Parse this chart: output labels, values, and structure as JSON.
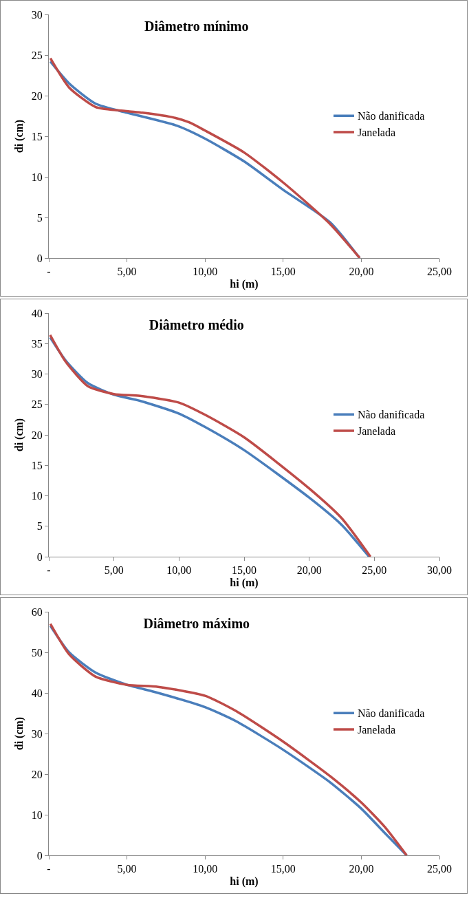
{
  "chart_data": [
    {
      "type": "line",
      "title": "Diâmetro mínimo",
      "xlabel": "hi (m)",
      "ylabel": "di (cm)",
      "xlim": [
        0,
        25
      ],
      "xticks": [
        {
          "value": 0,
          "label": "-"
        },
        {
          "value": 5,
          "label": "5,00"
        },
        {
          "value": 10,
          "label": "10,00"
        },
        {
          "value": 15,
          "label": "15,00"
        },
        {
          "value": 20,
          "label": "20,00"
        },
        {
          "value": 25,
          "label": "25,00"
        }
      ],
      "ylim": [
        0,
        30
      ],
      "yticks": [
        0,
        5,
        10,
        15,
        20,
        25,
        30
      ],
      "grid": false,
      "legend": "right",
      "marker": "none",
      "line_style": "solid",
      "series": [
        {
          "name": "Não danificada",
          "color": "#4a7ebb",
          "x": [
            0.1,
            1.3,
            3,
            5,
            8.2,
            10,
            12.5,
            15,
            18,
            19.9
          ],
          "values": [
            24.2,
            21.5,
            19,
            17.9,
            16.3,
            14.7,
            11.9,
            8.4,
            4.4,
            0
          ]
        },
        {
          "name": "Janelada",
          "color": "#be4b48",
          "x": [
            0.1,
            1.3,
            3,
            5,
            6,
            8,
            9,
            10,
            12.5,
            15,
            18,
            19.9
          ],
          "values": [
            24.6,
            21,
            18.6,
            18.1,
            17.9,
            17.3,
            16.7,
            15.7,
            13,
            9.3,
            4.2,
            0
          ]
        }
      ]
    },
    {
      "type": "line",
      "title": "Diâmetro médio",
      "xlabel": "hi (m)",
      "ylabel": "di (cm)",
      "xlim": [
        0,
        30
      ],
      "xticks": [
        {
          "value": 0,
          "label": "-"
        },
        {
          "value": 5,
          "label": "5,00"
        },
        {
          "value": 10,
          "label": "10,00"
        },
        {
          "value": 15,
          "label": "15,00"
        },
        {
          "value": 20,
          "label": "20,00"
        },
        {
          "value": 25,
          "label": "25,00"
        },
        {
          "value": 30,
          "label": "30,00"
        }
      ],
      "ylim": [
        0,
        40
      ],
      "yticks": [
        0,
        5,
        10,
        15,
        20,
        25,
        30,
        35,
        40
      ],
      "grid": false,
      "legend": "right",
      "marker": "none",
      "line_style": "solid",
      "series": [
        {
          "name": "Não danificada",
          "color": "#4a7ebb",
          "x": [
            0.1,
            1.3,
            3,
            5,
            7,
            10,
            12,
            15,
            20,
            22.5,
            24.6
          ],
          "values": [
            36,
            32.2,
            28.5,
            26.6,
            25.6,
            23.5,
            21.3,
            17.5,
            9.7,
            5.2,
            0
          ]
        },
        {
          "name": "Janelada",
          "color": "#be4b48",
          "x": [
            0.1,
            1.3,
            3,
            5,
            7,
            10,
            12,
            15,
            20,
            22.5,
            24.7
          ],
          "values": [
            36.4,
            32,
            28,
            26.7,
            26.4,
            25.3,
            23.3,
            19.6,
            11.2,
            6.3,
            0
          ]
        }
      ]
    },
    {
      "type": "line",
      "title": "Diâmetro máximo",
      "xlabel": "hi (m)",
      "ylabel": "di (cm)",
      "xlim": [
        0,
        25
      ],
      "xticks": [
        {
          "value": 0,
          "label": "-"
        },
        {
          "value": 5,
          "label": "5,00"
        },
        {
          "value": 10,
          "label": "10,00"
        },
        {
          "value": 15,
          "label": "15,00"
        },
        {
          "value": 20,
          "label": "20,00"
        },
        {
          "value": 25,
          "label": "25,00"
        }
      ],
      "ylim": [
        0,
        60
      ],
      "yticks": [
        0,
        10,
        20,
        30,
        40,
        50,
        60
      ],
      "grid": false,
      "legend": "right",
      "marker": "none",
      "line_style": "solid",
      "series": [
        {
          "name": "Não danificada",
          "color": "#4a7ebb",
          "x": [
            0.1,
            1.3,
            3,
            5,
            7,
            10,
            12,
            15,
            18,
            20,
            21.5,
            22.9
          ],
          "values": [
            56.5,
            50,
            45,
            42,
            40,
            36.5,
            33,
            26,
            18,
            11.5,
            5.5,
            0
          ]
        },
        {
          "name": "Janelada",
          "color": "#be4b48",
          "x": [
            0.1,
            1.3,
            3,
            5,
            7,
            10,
            12,
            15,
            18,
            20,
            21.5,
            22.9
          ],
          "values": [
            57,
            49.5,
            44,
            42,
            41.5,
            39.3,
            35.5,
            28,
            19.5,
            13,
            7,
            0
          ]
        }
      ]
    }
  ]
}
